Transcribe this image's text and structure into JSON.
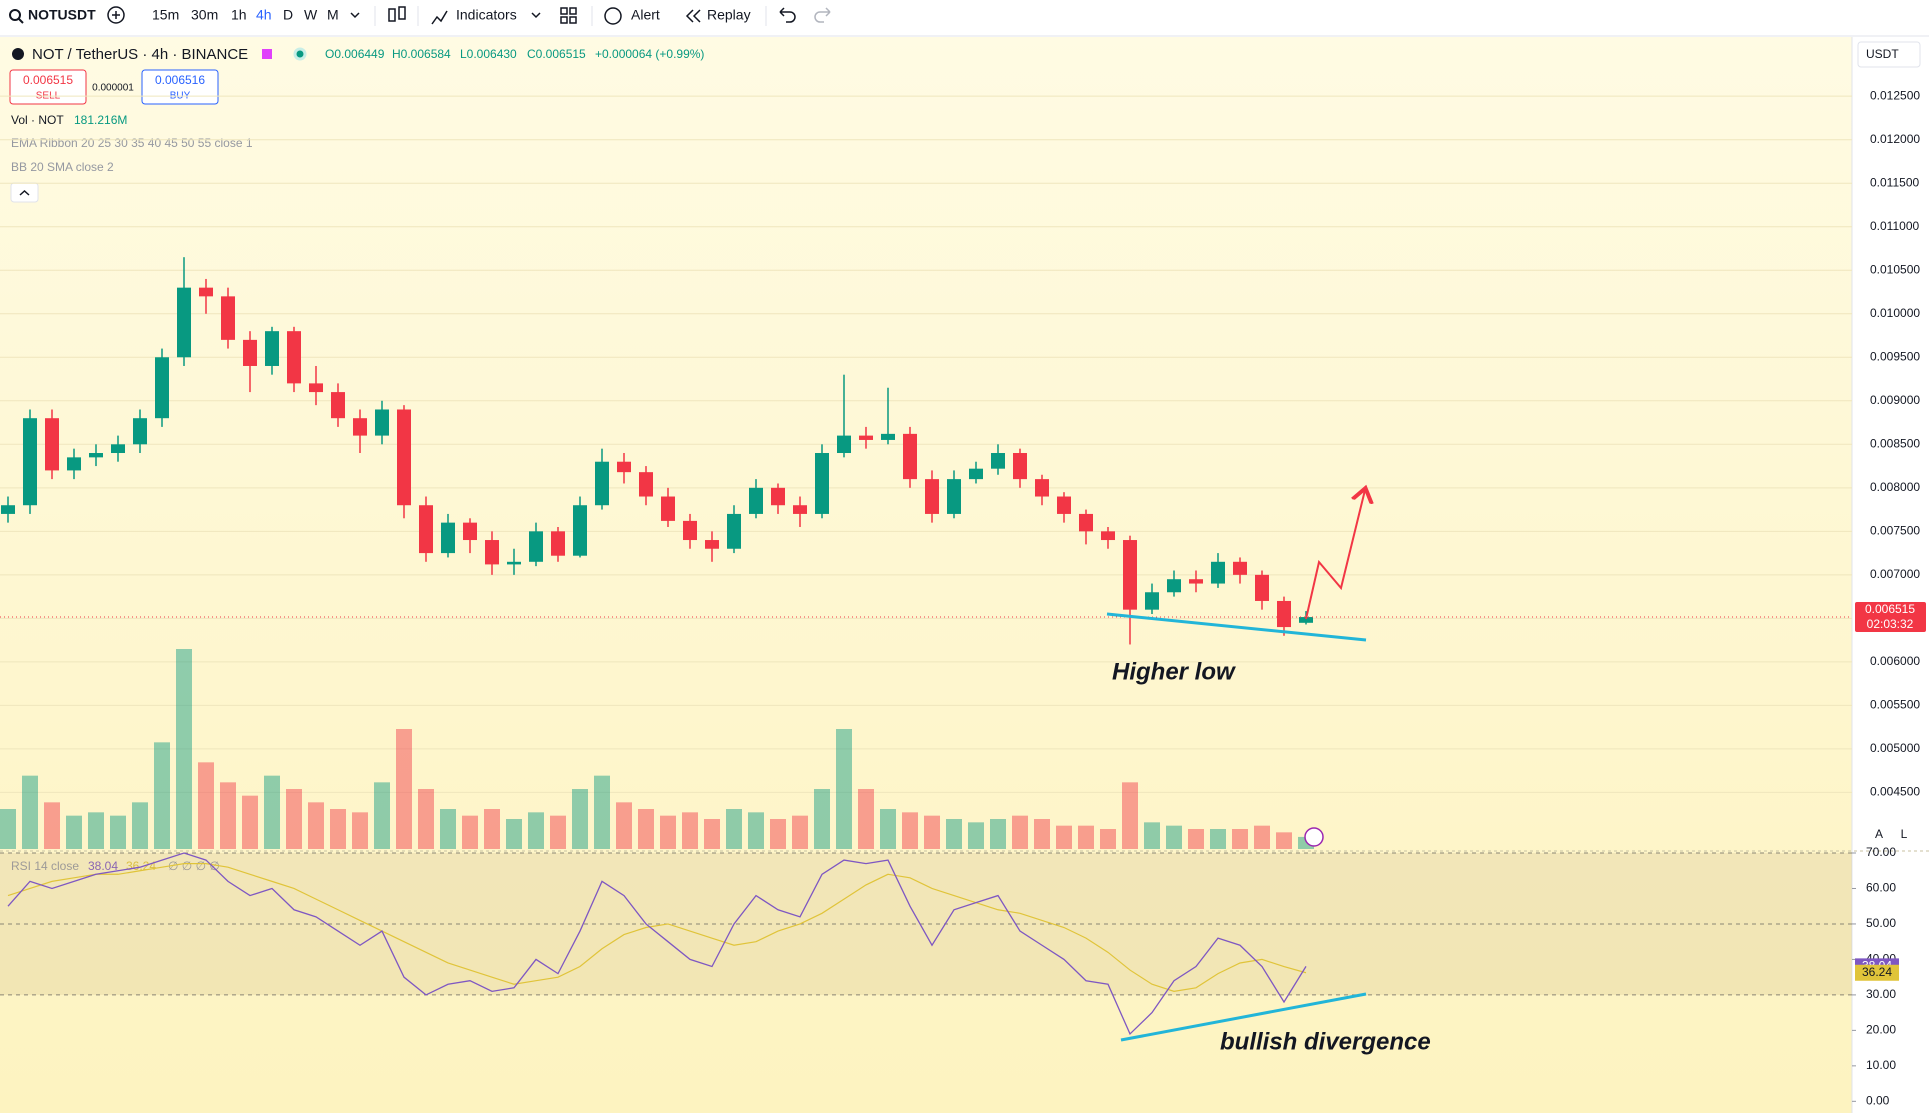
{
  "toolbar": {
    "symbol": "NOTUSDT",
    "intervals": [
      "15m",
      "30m",
      "1h",
      "4h",
      "D",
      "W",
      "M"
    ],
    "indicators": "Indicators",
    "alert": "Alert",
    "replay": "Replay"
  },
  "legend": {
    "title": "NOT / TetherUS · 4h · BINANCE",
    "ohlc": [
      "O0.006449",
      "H0.006584",
      "L0.006430",
      "C0.006515",
      "+0.000064 (+0.99%)"
    ],
    "sell_price": "0.006515",
    "sell": "SELL",
    "spread": "0.000001",
    "buy_price": "0.006516",
    "buy": "BUY",
    "vol": "Vol · NOT",
    "vol_value": "181.216M",
    "ema": "EMA Ribbon 20 25 30 35 40 45 50 55 close 1",
    "bb": "BB 20 SMA close 2",
    "rsi": "RSI 14 close",
    "rsi_extra": "∅ ∅ ∅ ∅",
    "currency": "USDT",
    "countdown": "02:03:32",
    "auto": "A",
    "log": "L"
  },
  "chart_data": {
    "type": "candlestick",
    "up_color": "#089981",
    "down_color": "#f23645",
    "ylim": [
      0.00385,
      0.01318
    ],
    "yticks": [
      {
        "value": 0.0125,
        "label": "0.012500"
      },
      {
        "value": 0.012,
        "label": "0.012000"
      },
      {
        "value": 0.0115,
        "label": "0.011500"
      },
      {
        "value": 0.011,
        "label": "0.011000"
      },
      {
        "value": 0.0105,
        "label": "0.010500"
      },
      {
        "value": 0.01,
        "label": "0.010000"
      },
      {
        "value": 0.0095,
        "label": "0.009500"
      },
      {
        "value": 0.009,
        "label": "0.009000"
      },
      {
        "value": 0.0085,
        "label": "0.008500"
      },
      {
        "value": 0.008,
        "label": "0.008000"
      },
      {
        "value": 0.0075,
        "label": "0.007500"
      },
      {
        "value": 0.007,
        "label": "0.007000"
      },
      {
        "value": 0.0065,
        "label": "0.006500"
      },
      {
        "value": 0.006,
        "label": "0.006000"
      },
      {
        "value": 0.0055,
        "label": "0.005500"
      },
      {
        "value": 0.005,
        "label": "0.005000"
      },
      {
        "value": 0.0045,
        "label": "0.004500"
      }
    ],
    "open": [
      0.0077,
      0.0078,
      0.0088,
      0.0082,
      0.00835,
      0.0084,
      0.0085,
      0.0088,
      0.0095,
      0.0103,
      0.0102,
      0.0097,
      0.0094,
      0.0098,
      0.0092,
      0.0091,
      0.0088,
      0.0086,
      0.0089,
      0.0078,
      0.00725,
      0.0076,
      0.0074,
      0.00712,
      0.00715,
      0.0075,
      0.00722,
      0.0078,
      0.0083,
      0.00818,
      0.0079,
      0.00762,
      0.0074,
      0.0073,
      0.0077,
      0.008,
      0.0078,
      0.0077,
      0.0084,
      0.0086,
      0.00855,
      0.00862,
      0.0081,
      0.0077,
      0.0081,
      0.00822,
      0.0084,
      0.0081,
      0.0079,
      0.0077,
      0.0075,
      0.0074,
      0.0066,
      0.0068,
      0.00695,
      0.0069,
      0.00715,
      0.007,
      0.0067,
      0.006449
    ],
    "high": [
      0.0079,
      0.0089,
      0.0089,
      0.00845,
      0.0085,
      0.0086,
      0.0089,
      0.0096,
      0.01065,
      0.0104,
      0.0103,
      0.0098,
      0.00985,
      0.00985,
      0.0094,
      0.0092,
      0.0089,
      0.009,
      0.00895,
      0.0079,
      0.0077,
      0.00765,
      0.0075,
      0.0073,
      0.0076,
      0.00755,
      0.0079,
      0.00845,
      0.0084,
      0.00825,
      0.008,
      0.0077,
      0.0075,
      0.0078,
      0.0081,
      0.00805,
      0.0079,
      0.0085,
      0.0093,
      0.0087,
      0.00915,
      0.0087,
      0.0082,
      0.0082,
      0.0083,
      0.0085,
      0.00845,
      0.00815,
      0.00795,
      0.00775,
      0.00755,
      0.00745,
      0.0069,
      0.00705,
      0.00705,
      0.00725,
      0.0072,
      0.00705,
      0.00675,
      0.006584
    ],
    "low": [
      0.0076,
      0.0077,
      0.0081,
      0.0081,
      0.00825,
      0.0083,
      0.0084,
      0.0087,
      0.0094,
      0.01,
      0.0096,
      0.0091,
      0.0093,
      0.0091,
      0.00895,
      0.0087,
      0.0084,
      0.0085,
      0.00765,
      0.00715,
      0.0072,
      0.00725,
      0.007,
      0.007,
      0.0071,
      0.00715,
      0.0072,
      0.00775,
      0.00805,
      0.0078,
      0.00755,
      0.0073,
      0.00715,
      0.00725,
      0.00765,
      0.0077,
      0.00755,
      0.00765,
      0.00835,
      0.00845,
      0.0085,
      0.008,
      0.0076,
      0.00765,
      0.00805,
      0.00815,
      0.008,
      0.0078,
      0.0076,
      0.00735,
      0.0073,
      0.0062,
      0.00655,
      0.00675,
      0.0068,
      0.00685,
      0.0069,
      0.0066,
      0.0063,
      0.00643
    ],
    "close": [
      0.0078,
      0.0088,
      0.0082,
      0.00835,
      0.0084,
      0.0085,
      0.0088,
      0.0095,
      0.0103,
      0.0102,
      0.0097,
      0.0094,
      0.0098,
      0.0092,
      0.0091,
      0.0088,
      0.0086,
      0.0089,
      0.0078,
      0.00725,
      0.0076,
      0.0074,
      0.00712,
      0.00715,
      0.0075,
      0.00722,
      0.0078,
      0.0083,
      0.00818,
      0.0079,
      0.00762,
      0.0074,
      0.0073,
      0.0077,
      0.008,
      0.0078,
      0.0077,
      0.0084,
      0.0086,
      0.00855,
      0.00862,
      0.0081,
      0.0077,
      0.0081,
      0.00822,
      0.0084,
      0.0081,
      0.0079,
      0.0077,
      0.0075,
      0.0074,
      0.0066,
      0.0068,
      0.00695,
      0.0069,
      0.00715,
      0.007,
      0.0067,
      0.0064,
      0.006515
    ],
    "volume": {
      "ylim": [
        0,
        3300
      ],
      "values": [
        600,
        1100,
        700,
        500,
        550,
        500,
        700,
        1600,
        3000,
        1300,
        1000,
        800,
        1100,
        900,
        700,
        600,
        550,
        1000,
        1800,
        900,
        600,
        500,
        600,
        450,
        550,
        500,
        900,
        1100,
        700,
        600,
        500,
        550,
        450,
        600,
        550,
        450,
        500,
        900,
        1800,
        900,
        600,
        550,
        500,
        450,
        400,
        450,
        500,
        450,
        350,
        350,
        300,
        1000,
        400,
        350,
        300,
        300,
        300,
        350,
        250,
        181.216
      ]
    },
    "rsi": {
      "ylim": [
        -1.6,
        70
      ],
      "levels": [
        30,
        50,
        70
      ],
      "color": "#7e57c2",
      "yticks": [
        {
          "value": 70,
          "label": "70.00"
        },
        {
          "value": 60,
          "label": "60.00"
        },
        {
          "value": 50,
          "label": "50.00"
        },
        {
          "value": 40,
          "label": "40.00"
        },
        {
          "value": 30,
          "label": "30.00"
        },
        {
          "value": 20,
          "label": "20.00"
        },
        {
          "value": 10,
          "label": "10.00"
        },
        {
          "value": 0,
          "label": "0.00"
        }
      ],
      "values": [
        55,
        62,
        60,
        62,
        64,
        65,
        66,
        68,
        70,
        68,
        62,
        58,
        60,
        54,
        52,
        48,
        44,
        48,
        35,
        30,
        33,
        34,
        31,
        32,
        40,
        36,
        48,
        62,
        58,
        50,
        45,
        40,
        38,
        50,
        58,
        54,
        52,
        64,
        68,
        67,
        68,
        55,
        44,
        54,
        56,
        58,
        48,
        44,
        40,
        34,
        33,
        19,
        25,
        34,
        38,
        46,
        44,
        38,
        28,
        38.04
      ]
    },
    "rsi_ma": {
      "color": "#e0c43a",
      "values": [
        58,
        60,
        62,
        63,
        64,
        64,
        65,
        66,
        67,
        67,
        66,
        64,
        62,
        60,
        57,
        54,
        51,
        48,
        45,
        42,
        39,
        37,
        35,
        33,
        34,
        35,
        38,
        43,
        47,
        49,
        50,
        48,
        46,
        44,
        45,
        48,
        50,
        53,
        57,
        61,
        64,
        63,
        60,
        58,
        56,
        54,
        53,
        51,
        49,
        46,
        42,
        37,
        33,
        31,
        32,
        36,
        39,
        40,
        38,
        36.24
      ]
    },
    "annotations": [
      "Higher low",
      "bullish divergence"
    ]
  }
}
